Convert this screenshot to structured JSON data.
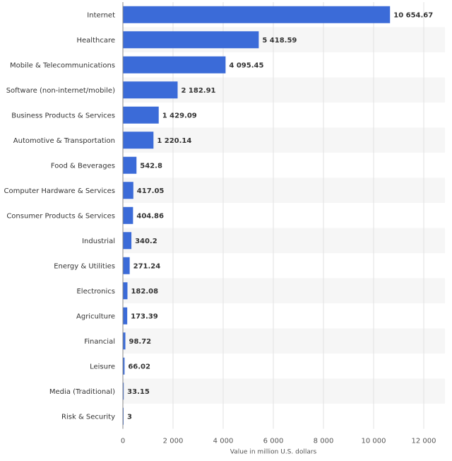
{
  "chart_data": {
    "type": "bar",
    "orientation": "horizontal",
    "categories": [
      "Internet",
      "Healthcare",
      "Mobile & Telecommunications",
      "Software (non-internet/mobile)",
      "Business Products & Services",
      "Automotive & Transportation",
      "Food & Beverages",
      "Computer Hardware & Services",
      "Consumer Products & Services",
      "Industrial",
      "Energy & Utilities",
      "Electronics",
      "Agriculture",
      "Financial",
      "Leisure",
      "Media (Traditional)",
      "Risk & Security"
    ],
    "values": [
      10654.67,
      5418.59,
      4095.45,
      2182.91,
      1429.09,
      1220.14,
      542.8,
      417.05,
      404.86,
      340.2,
      271.24,
      182.08,
      173.39,
      98.72,
      66.02,
      33.15,
      3
    ],
    "value_labels": [
      "10 654.67",
      "5 418.59",
      "4 095.45",
      "2 182.91",
      "1 429.09",
      "1 220.14",
      "542.8",
      "417.05",
      "404.86",
      "340.2",
      "271.24",
      "182.08",
      "173.39",
      "98.72",
      "66.02",
      "33.15",
      "3"
    ],
    "title": "",
    "xlabel": "Value in million U.S. dollars",
    "ylabel": "",
    "xlim": [
      0,
      12000
    ],
    "xticks": [
      0,
      2000,
      4000,
      6000,
      8000,
      10000,
      12000
    ],
    "xtick_labels": [
      "0",
      "2 000",
      "4 000",
      "6 000",
      "8 000",
      "10 000",
      "12 000"
    ],
    "grid": "vertical",
    "legend": "none",
    "colors": {
      "bar": "#3b6bd8",
      "band": "#f6f6f6",
      "grid": "#e2e2e2",
      "axis": "#888888"
    }
  }
}
